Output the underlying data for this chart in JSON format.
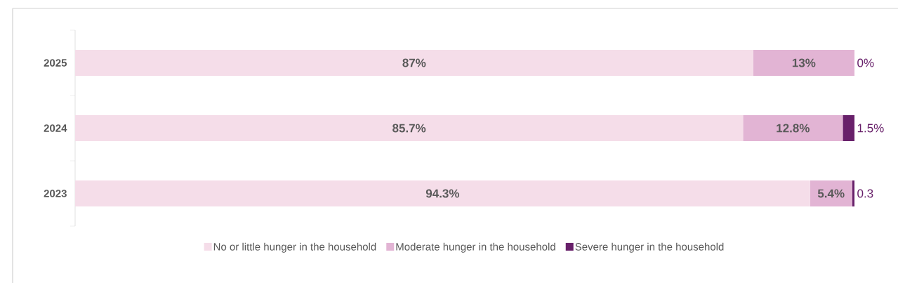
{
  "chart_data": {
    "type": "bar",
    "orientation": "horizontal",
    "stacked": true,
    "legend": "bottom",
    "categories": [
      "2025",
      "2024",
      "2023"
    ],
    "series": [
      {
        "name": "No or little hunger in the household",
        "color": "#f5dde9",
        "values": [
          87,
          85.7,
          94.3
        ],
        "value_labels": [
          "87%",
          "85.7%",
          "94.3%"
        ]
      },
      {
        "name": "Moderate hunger in the household",
        "color": "#e2b4d4",
        "values": [
          13,
          12.8,
          5.4
        ],
        "value_labels": [
          "13%",
          "12.8%",
          "5.4%"
        ]
      },
      {
        "name": "Severe hunger in the household",
        "color": "#68206a",
        "values": [
          0,
          1.5,
          0.3
        ],
        "value_labels": [
          "0%",
          "1.5%",
          "0.3"
        ]
      }
    ]
  }
}
